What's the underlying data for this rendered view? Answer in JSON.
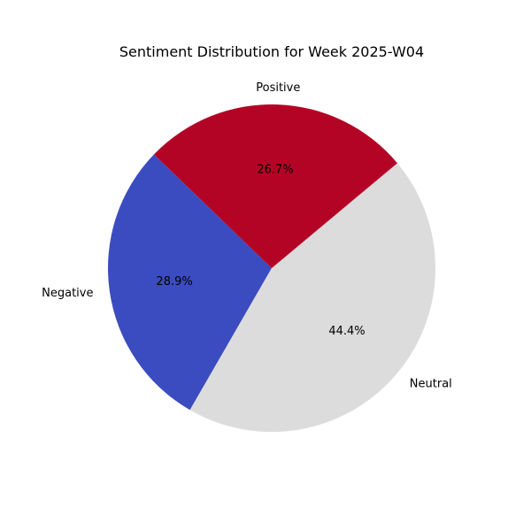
{
  "chart_data": {
    "type": "pie",
    "title": "Sentiment Distribution for Week 2025-W04",
    "slices": [
      {
        "label": "Negative",
        "value": 28.9,
        "pct_label": "28.9%",
        "color": "#3b4cc0"
      },
      {
        "label": "Neutral",
        "value": 44.4,
        "pct_label": "44.4%",
        "color": "#dcdcdc"
      },
      {
        "label": "Positive",
        "value": 26.7,
        "pct_label": "26.7%",
        "color": "#b40426"
      }
    ],
    "start_angle_deg": 136,
    "direction": "counterclockwise",
    "legend": "none"
  }
}
